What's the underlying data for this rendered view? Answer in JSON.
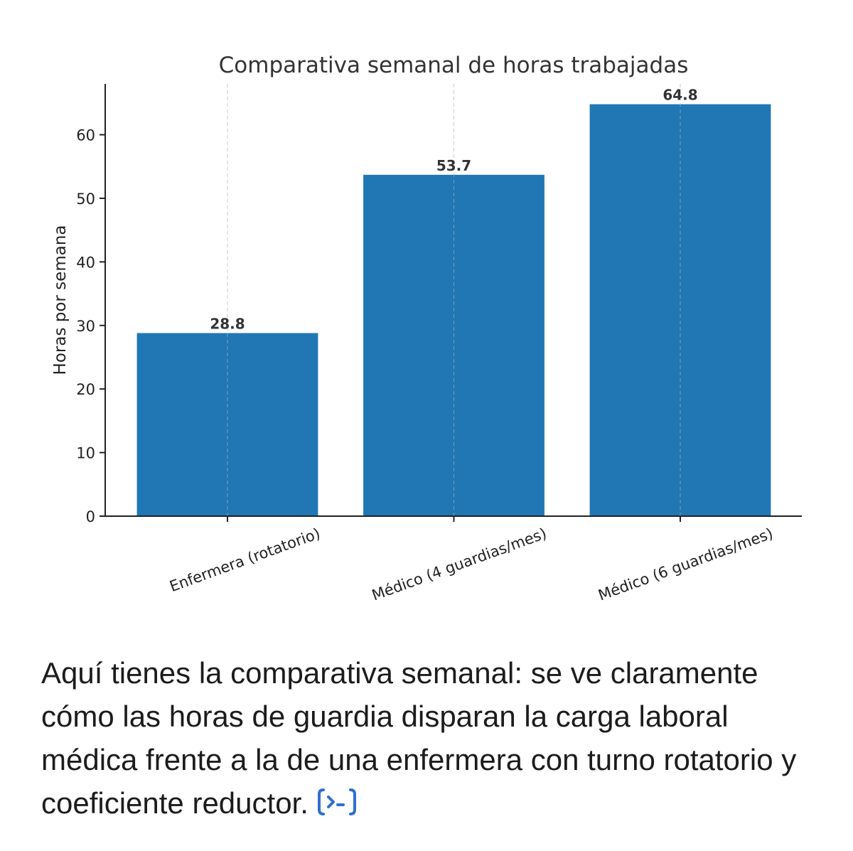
{
  "chart_data": {
    "type": "bar",
    "title": "Comparativa semanal de horas trabajadas",
    "xlabel": "",
    "ylabel": "Horas por semana",
    "categories": [
      "Enfermera (rotatorio)",
      "Médico (4 guardias/mes)",
      "Médico (6 guardias/mes)"
    ],
    "values": [
      28.8,
      53.7,
      64.8
    ],
    "value_labels": [
      "28.8",
      "53.7",
      "64.8"
    ],
    "ylim": [
      0,
      68
    ],
    "yticks": [
      0,
      10,
      20,
      30,
      40,
      50,
      60
    ],
    "bar_color": "#2077b4",
    "grid": "vertical dashed at x-ticks",
    "x_tick_rotation": "rotated"
  },
  "message": {
    "text": "Aquí tienes la comparativa semanal: se ve claramente cómo las horas de guardia disparan la carga laboral médica frente a la de una enfermera con turno rotatorio y coeficiente reductor.",
    "icon": "code-interpreter-icon",
    "icon_color": "#2f6fd0"
  }
}
